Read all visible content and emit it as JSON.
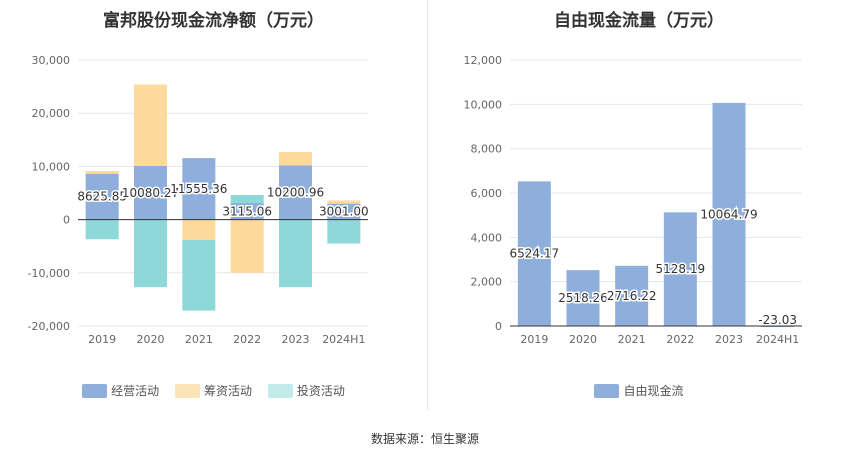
{
  "source_label": "数据来源：恒生聚源",
  "chart_data": [
    {
      "type": "bar",
      "stacked": true,
      "title": "富邦股份现金流净额（万元）",
      "categories": [
        "2019",
        "2020",
        "2021",
        "2022",
        "2023",
        "2024H1"
      ],
      "ylim": [
        -20000,
        30000
      ],
      "yticks": [
        -20000,
        -10000,
        0,
        10000,
        20000,
        30000
      ],
      "ytick_labels": [
        "-20,000",
        "-10,000",
        "0",
        "10,000",
        "20,000",
        "30,000"
      ],
      "legend_position": "bottom",
      "grid": true,
      "series": [
        {
          "name": "经营活动",
          "color": "#8eaedb",
          "values": [
            8625.85,
            10080.27,
            11555.36,
            3115.06,
            10200.96,
            3001.0
          ],
          "labels": [
            "8625.85",
            "10080.27",
            "11555.36",
            "3115.06",
            "10200.96",
            "3001.00"
          ]
        },
        {
          "name": "筹资活动",
          "color": "#fdd99b",
          "values": [
            500,
            15300,
            -3800,
            -10000,
            2500,
            600
          ]
        },
        {
          "name": "投资活动",
          "color": "#8dd8d8",
          "values": [
            -3700,
            -12700,
            -13300,
            1500,
            -12700,
            -4500
          ]
        }
      ]
    },
    {
      "type": "bar",
      "title": "自由现金流量（万元）",
      "categories": [
        "2019",
        "2020",
        "2021",
        "2022",
        "2023",
        "2024H1"
      ],
      "ylim": [
        0,
        12000
      ],
      "yticks": [
        0,
        2000,
        4000,
        6000,
        8000,
        10000,
        12000
      ],
      "ytick_labels": [
        "0",
        "2,000",
        "4,000",
        "6,000",
        "8,000",
        "10,000",
        "12,000"
      ],
      "legend_position": "bottom",
      "grid": true,
      "series": [
        {
          "name": "自由现金流",
          "color": "#8eaedb",
          "values": [
            6524.17,
            2518.26,
            2716.22,
            5128.19,
            10064.79,
            -23.03
          ],
          "labels": [
            "6524.17",
            "2518.26",
            "2716.22",
            "5128.19",
            "10064.79",
            "-23.03"
          ]
        }
      ]
    }
  ]
}
